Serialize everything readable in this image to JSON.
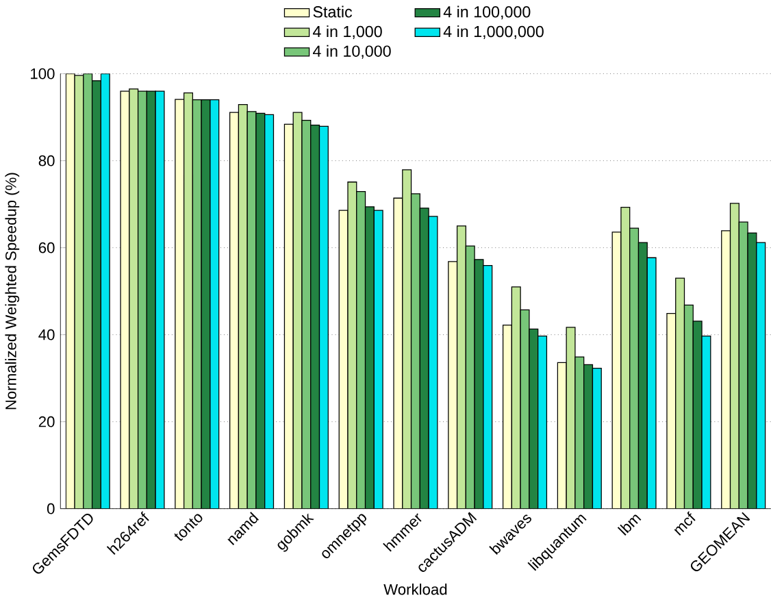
{
  "chart_data": {
    "type": "bar",
    "xlabel": "Workload",
    "ylabel": "Normalized Weighted Speedup (%)",
    "categories": [
      "GemsFDTD",
      "h264ref",
      "tonto",
      "namd",
      "gobmk",
      "omnetpp",
      "hmmer",
      "cactusADM",
      "bwaves",
      "libquantum",
      "lbm",
      "mcf",
      "GEOMEAN"
    ],
    "series": [
      {
        "name": "Static",
        "color": "#ffffcc",
        "values": [
          100,
          96,
          94.1,
          91.1,
          88.4,
          68.6,
          71.4,
          56.8,
          42.2,
          33.6,
          63.6,
          44.9,
          63.9
        ]
      },
      {
        "name": "4 in 1,000",
        "color": "#c2e699",
        "values": [
          99.6,
          96.5,
          95.6,
          92.9,
          91.1,
          75.1,
          77.9,
          65.0,
          51.0,
          41.7,
          69.3,
          53.0,
          70.2
        ]
      },
      {
        "name": "4 in 10,000",
        "color": "#78c679",
        "values": [
          100,
          96,
          94,
          91.3,
          89.3,
          72.9,
          72.4,
          60.4,
          45.7,
          34.9,
          64.5,
          46.8,
          65.9
        ]
      },
      {
        "name": "4 in 100,000",
        "color": "#238443",
        "values": [
          98.4,
          96,
          94,
          90.9,
          88.2,
          69.4,
          69.1,
          57.3,
          41.3,
          33.1,
          61.2,
          43.1,
          63.4
        ]
      },
      {
        "name": "4 in 1,000,000",
        "color": "#00e5ee",
        "values": [
          100,
          96,
          94,
          90.6,
          87.9,
          68.6,
          67.2,
          55.9,
          39.7,
          32.3,
          57.7,
          39.7,
          61.2
        ]
      }
    ],
    "ylim": [
      0,
      100
    ],
    "yticks": [
      0,
      20,
      40,
      60,
      80,
      100
    ],
    "grid": "y",
    "legend": "top"
  }
}
